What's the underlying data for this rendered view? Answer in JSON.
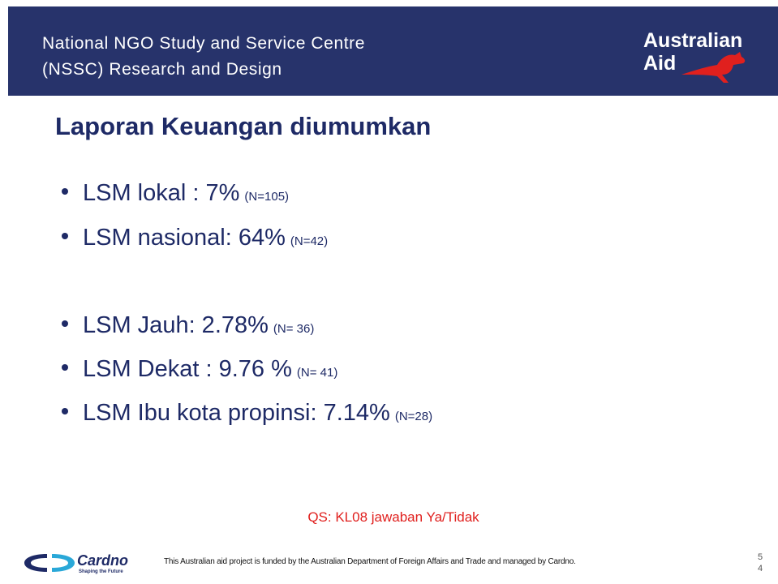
{
  "header": {
    "lines": [
      "National NGO Study and Service Centre",
      "(NSSC) Research and Design"
    ],
    "logo": [
      "Australian",
      "Aid"
    ]
  },
  "title": "Laporan Keuangan diumumkan",
  "bullets": [
    {
      "text": "LSM lokal : 7%",
      "n": "(N=105)"
    },
    {
      "text": "LSM nasional: 64%",
      "n": "(N=42)"
    },
    {
      "text": "LSM Jauh: 2.78%",
      "n": "(N= 36)"
    },
    {
      "text": "LSM Dekat : 9.76 %",
      "n": "(N= 41)"
    },
    {
      "text": "LSM Ibu kota propinsi: 7.14%",
      "n": "(N=28)"
    }
  ],
  "note": "QS: KL08 jawaban Ya/Tidak",
  "footer": {
    "brand": "Cardno",
    "tagline": "Shaping the Future",
    "text": "This Australian aid project is funded by the Australian Department of Foreign Affairs and Trade and managed by Cardno.",
    "page_number": "54"
  }
}
